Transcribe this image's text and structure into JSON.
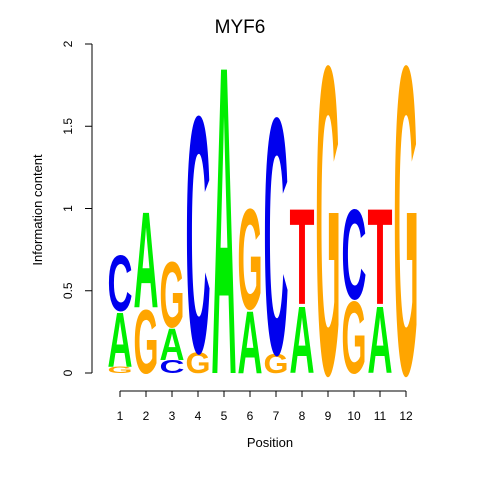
{
  "chart_data": {
    "type": "sequence_logo",
    "title": "MYF6",
    "xlabel": "Position",
    "ylabel": "Information content",
    "ylim": [
      0,
      2
    ],
    "yticks": [
      "0",
      "0.5",
      "1",
      "1.5",
      "2"
    ],
    "positions": [
      "1",
      "2",
      "3",
      "4",
      "5",
      "6",
      "7",
      "8",
      "9",
      "10",
      "11",
      "12"
    ],
    "colors": {
      "A": "#00ee00",
      "C": "#0000ee",
      "G": "#ffa500",
      "T": "#ff0000"
    },
    "stacks": [
      [
        [
          "G",
          0.04
        ],
        [
          "A",
          0.34
        ],
        [
          "C",
          0.35
        ]
      ],
      [
        [
          "G",
          0.4
        ],
        [
          "A",
          0.6
        ]
      ],
      [
        [
          "C",
          0.08
        ],
        [
          "A",
          0.2
        ],
        [
          "G",
          0.41
        ]
      ],
      [
        [
          "G",
          0.13
        ],
        [
          "C",
          1.48
        ]
      ],
      [
        [
          "A",
          1.93
        ]
      ],
      [
        [
          "A",
          0.39
        ],
        [
          "G",
          0.63
        ]
      ],
      [
        [
          "G",
          0.12
        ],
        [
          "C",
          1.48
        ]
      ],
      [
        [
          "A",
          0.42
        ],
        [
          "T",
          0.6
        ]
      ],
      [
        [
          "G",
          1.93
        ]
      ],
      [
        [
          "G",
          0.45
        ],
        [
          "C",
          0.56
        ]
      ],
      [
        [
          "A",
          0.42
        ],
        [
          "T",
          0.6
        ]
      ],
      [
        [
          "G",
          1.93
        ]
      ]
    ]
  }
}
